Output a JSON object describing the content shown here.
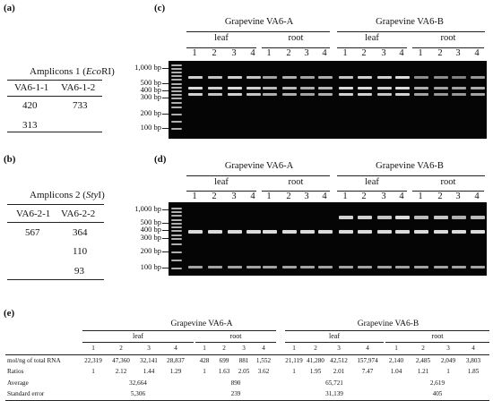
{
  "panels": {
    "a": "(a)",
    "b": "(b)",
    "c": "(c)",
    "d": "(d)",
    "e": "(e)"
  },
  "panel_a": {
    "title_pre": "Amplicons 1 (",
    "title_enzyme": "Eco",
    "title_enzyme2": "RI",
    "title_post": ")",
    "col1": "VA6-1-1",
    "col2": "VA6-1-2",
    "rows": [
      [
        "420",
        "733"
      ],
      [
        "313",
        ""
      ]
    ]
  },
  "panel_b": {
    "title_pre": "Amplicons 2 (",
    "title_enzyme": "Sty",
    "title_enzyme2": "I",
    "title_post": ")",
    "col1": "VA6-2-1",
    "col2": "VA6-2-2",
    "rows": [
      [
        "567",
        "364"
      ],
      [
        "",
        "110"
      ],
      [
        "",
        "93"
      ]
    ]
  },
  "gel_headers": {
    "a": "Grapevine VA6-A",
    "b": "Grapevine VA6-B",
    "leaf": "leaf",
    "root": "root",
    "lanes": [
      "1",
      "2",
      "3",
      "4"
    ]
  },
  "markers_c": [
    "1,000 bp",
    "500 bp",
    "400 bp",
    "300 bp",
    "200 bp",
    "100 bp"
  ],
  "markers_d": [
    "1,000 bp",
    "500 bp",
    "400 bp",
    "300 bp",
    "200 bp",
    "100 bp"
  ],
  "table_e": {
    "groupA": "Grapevine VA6-A",
    "groupB": "Grapevine VA6-B",
    "leaf": "leaf",
    "root": "root",
    "lanes": [
      "1",
      "2",
      "3",
      "4"
    ],
    "row_labels": [
      "mol/ng of total RNA",
      "Ratios",
      "Average",
      "Standard error"
    ],
    "mol": [
      "22,319",
      "47,360",
      "32,141",
      "28,837",
      "428",
      "699",
      "881",
      "1,552",
      "21,119",
      "41,280",
      "42,512",
      "157,974",
      "2,140",
      "2,485",
      "2,049",
      "3,803"
    ],
    "ratios": [
      "1",
      "2.12",
      "1.44",
      "1.29",
      "1",
      "1.63",
      "2.05",
      "3.62",
      "1",
      "1.95",
      "2.01",
      "7.47",
      "1.04",
      "1.21",
      "1",
      "1.85"
    ],
    "average": [
      "32,664",
      "890",
      "65,721",
      "2,619"
    ],
    "stderr": [
      "5,306",
      "239",
      "31,139",
      "405"
    ]
  },
  "colors": {
    "gel_bg": "#050505",
    "band": "#e8e8e8"
  }
}
